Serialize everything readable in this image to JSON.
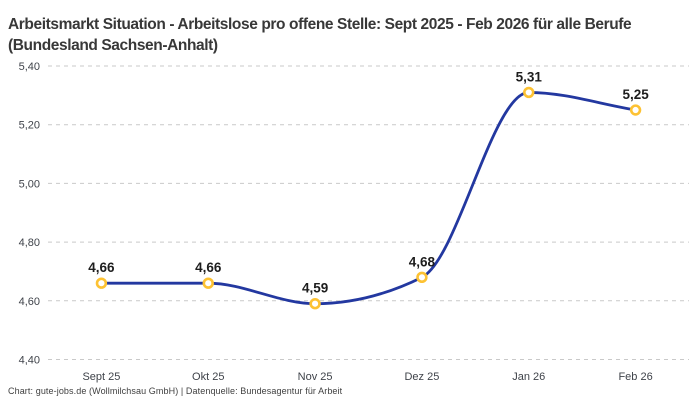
{
  "title": "Arbeitsmarkt Situation - Arbeitslose pro offene Stelle: Sept 2025 - Feb 2026 für alle Berufe (Bundesland Sachsen-Anhalt)",
  "footer": "Chart: gute-jobs.de (Wollmilchsau GmbH) | Datenquelle: Bundesagentur für Arbeit",
  "chart_data": {
    "type": "line",
    "title": "Arbeitsmarkt Situation - Arbeitslose pro offene Stelle: Sept 2025 - Feb 2026 für alle Berufe (Bundesland Sachsen-Anhalt)",
    "categories": [
      "Sept 25",
      "Okt 25",
      "Nov 25",
      "Dez 25",
      "Jan 26",
      "Feb 26"
    ],
    "values": [
      4.66,
      4.66,
      4.59,
      4.68,
      5.31,
      5.25
    ],
    "value_labels": [
      "4,66",
      "4,66",
      "4,59",
      "4,68",
      "5,31",
      "5,25"
    ],
    "xlabel": "",
    "ylabel": "",
    "ylim": [
      4.4,
      5.4
    ],
    "yticks": [
      4.4,
      4.6,
      4.8,
      5.0,
      5.2,
      5.4
    ],
    "ytick_labels": [
      "4,40",
      "4,60",
      "4,80",
      "5,00",
      "5,20",
      "5,40"
    ],
    "grid": "horizontal-dashed",
    "legend": "none",
    "curve": "monotone",
    "colors": {
      "line": "#2338a0",
      "marker_stroke": "#fdc233",
      "marker_fill": "#ffffff",
      "grid": "#c9c9c9",
      "tick_label": "#3f434a",
      "data_label": "#1d1d1d"
    }
  }
}
